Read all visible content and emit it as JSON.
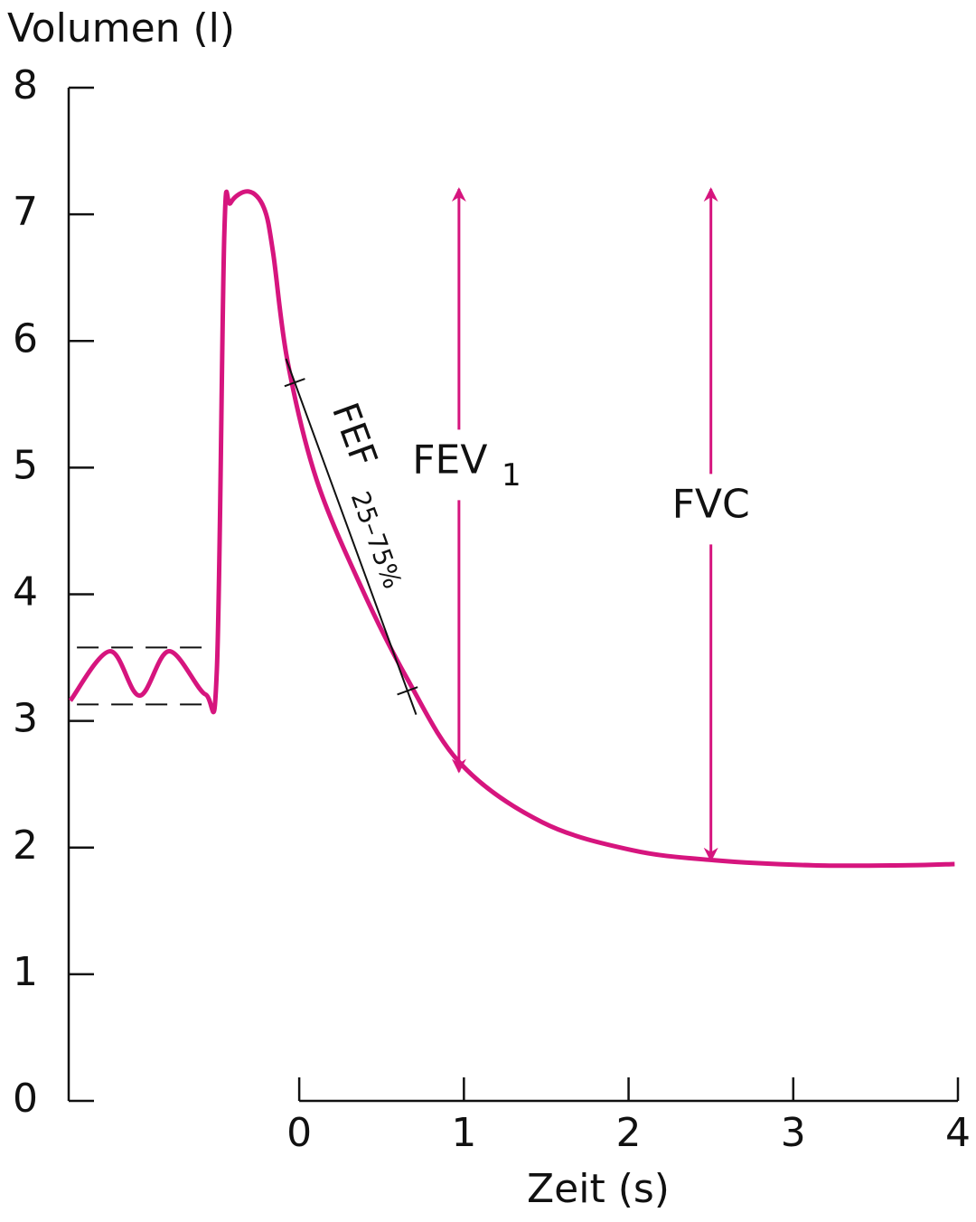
{
  "chart_data": {
    "type": "line",
    "y_label": "Volumen (l)",
    "x_label": "Zeit (s)",
    "color": "#d6157e",
    "x": [
      -1.39,
      -1.15,
      -0.97,
      -0.79,
      -0.57,
      -0.5,
      -0.455,
      -0.417,
      -0.307,
      -0.214,
      -0.159,
      -0.071,
      0.104,
      0.379,
      0.653,
      0.982,
      1.476,
      2.02,
      2.52,
      3.12,
      3.67,
      3.98
    ],
    "series": [
      {
        "values": [
          3.16,
          3.55,
          3.2,
          3.55,
          3.21,
          3.41,
          6.84,
          7.09,
          7.18,
          7.05,
          6.7,
          5.84,
          4.91,
          4.05,
          3.34,
          2.66,
          2.2,
          1.98,
          1.9,
          1.86,
          1.86,
          1.87
        ]
      }
    ],
    "xlim": [
      -1.4,
      4
    ],
    "xticks": [
      0,
      1,
      2,
      3,
      4
    ],
    "ylim": [
      0,
      8
    ],
    "yticks": [
      0,
      1,
      2,
      3,
      4,
      5,
      6,
      7,
      8
    ],
    "dashed_lines": [
      {
        "y": 3.58,
        "x": [
          -1.35,
          -0.54
        ]
      },
      {
        "y": 3.13,
        "x": [
          -1.35,
          -0.54
        ]
      }
    ],
    "arrows": [
      {
        "label": "FEV",
        "subscript": "1",
        "x": 0.97,
        "y": [
          2.6,
          7.2
        ]
      },
      {
        "label": "FVC",
        "x": 2.5,
        "y": [
          1.9,
          7.2
        ]
      }
    ],
    "fef_line": {
      "label": "FEF",
      "subscript": "25–75%",
      "x": [
        -0.08,
        0.71
      ],
      "y": [
        5.86,
        3.05
      ]
    }
  }
}
